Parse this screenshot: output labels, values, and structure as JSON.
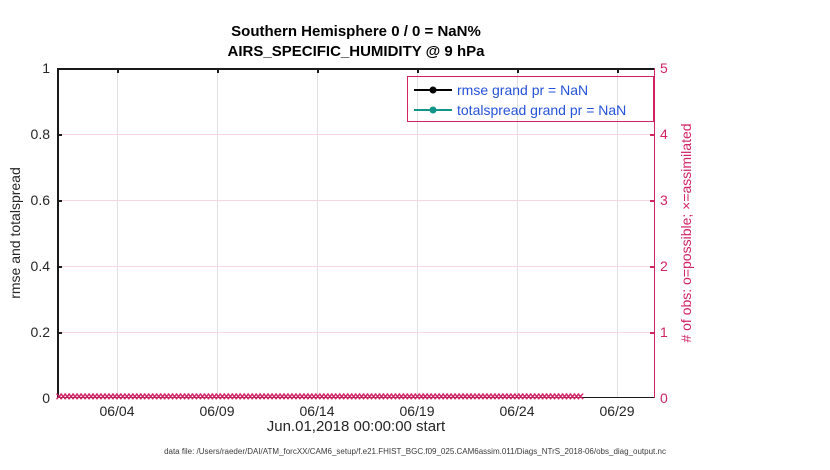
{
  "colors": {
    "crimson": "#d02465",
    "teal": "#12968a",
    "legend_text_blue": "#2553d9",
    "tick_text": "#262626",
    "grid_x": "#e0e0e0",
    "grid_y_pink": "#f7d6e3"
  },
  "chart_data": {
    "type": "line",
    "title": "Southern Hemisphere 0 / 0 = NaN%",
    "subtitle": "AIRS_SPECIFIC_HUMIDITY @ 9 hPa",
    "xlabel": "Jun.01,2018 00:00:00 start",
    "ylabel_left": "rmse and totalspread",
    "ylabel_right": "# of obs: o=possible; ×=assimilated",
    "x_tick_labels": [
      "06/04",
      "06/09",
      "06/14",
      "06/19",
      "06/24",
      "06/29"
    ],
    "y_tick_labels_left": [
      "0",
      "0.2",
      "0.4",
      "0.6",
      "0.8",
      "1"
    ],
    "y_tick_labels_right": [
      "0",
      "1",
      "2",
      "3",
      "4",
      "5"
    ],
    "ylim_left": [
      0,
      1
    ],
    "ylim_right": [
      0,
      5
    ],
    "grid": true,
    "legend_position": "top-right",
    "series": [
      {
        "name": "rmse grand pr = NaN",
        "color": "#000000",
        "marker": "circle",
        "in_legend": true,
        "values": []
      },
      {
        "name": "totalspread grand pr = NaN",
        "color": "#12968a",
        "marker": "circle",
        "in_legend": true,
        "values": []
      },
      {
        "name": "assimilated observation count",
        "color": "#d02465",
        "marker": "x",
        "axis": "right",
        "in_legend": false,
        "constant_value": 0
      }
    ],
    "marker_band": {
      "glyph": "✕",
      "count": 132,
      "value": 0
    },
    "footer": "data file: /Users/raeder/DAI/ATM_forcXX/CAM6_setup/f.e21.FHIST_BGC.f09_025.CAM6assim.011/Diags_NTrS_2018-06/obs_diag_output.nc"
  }
}
